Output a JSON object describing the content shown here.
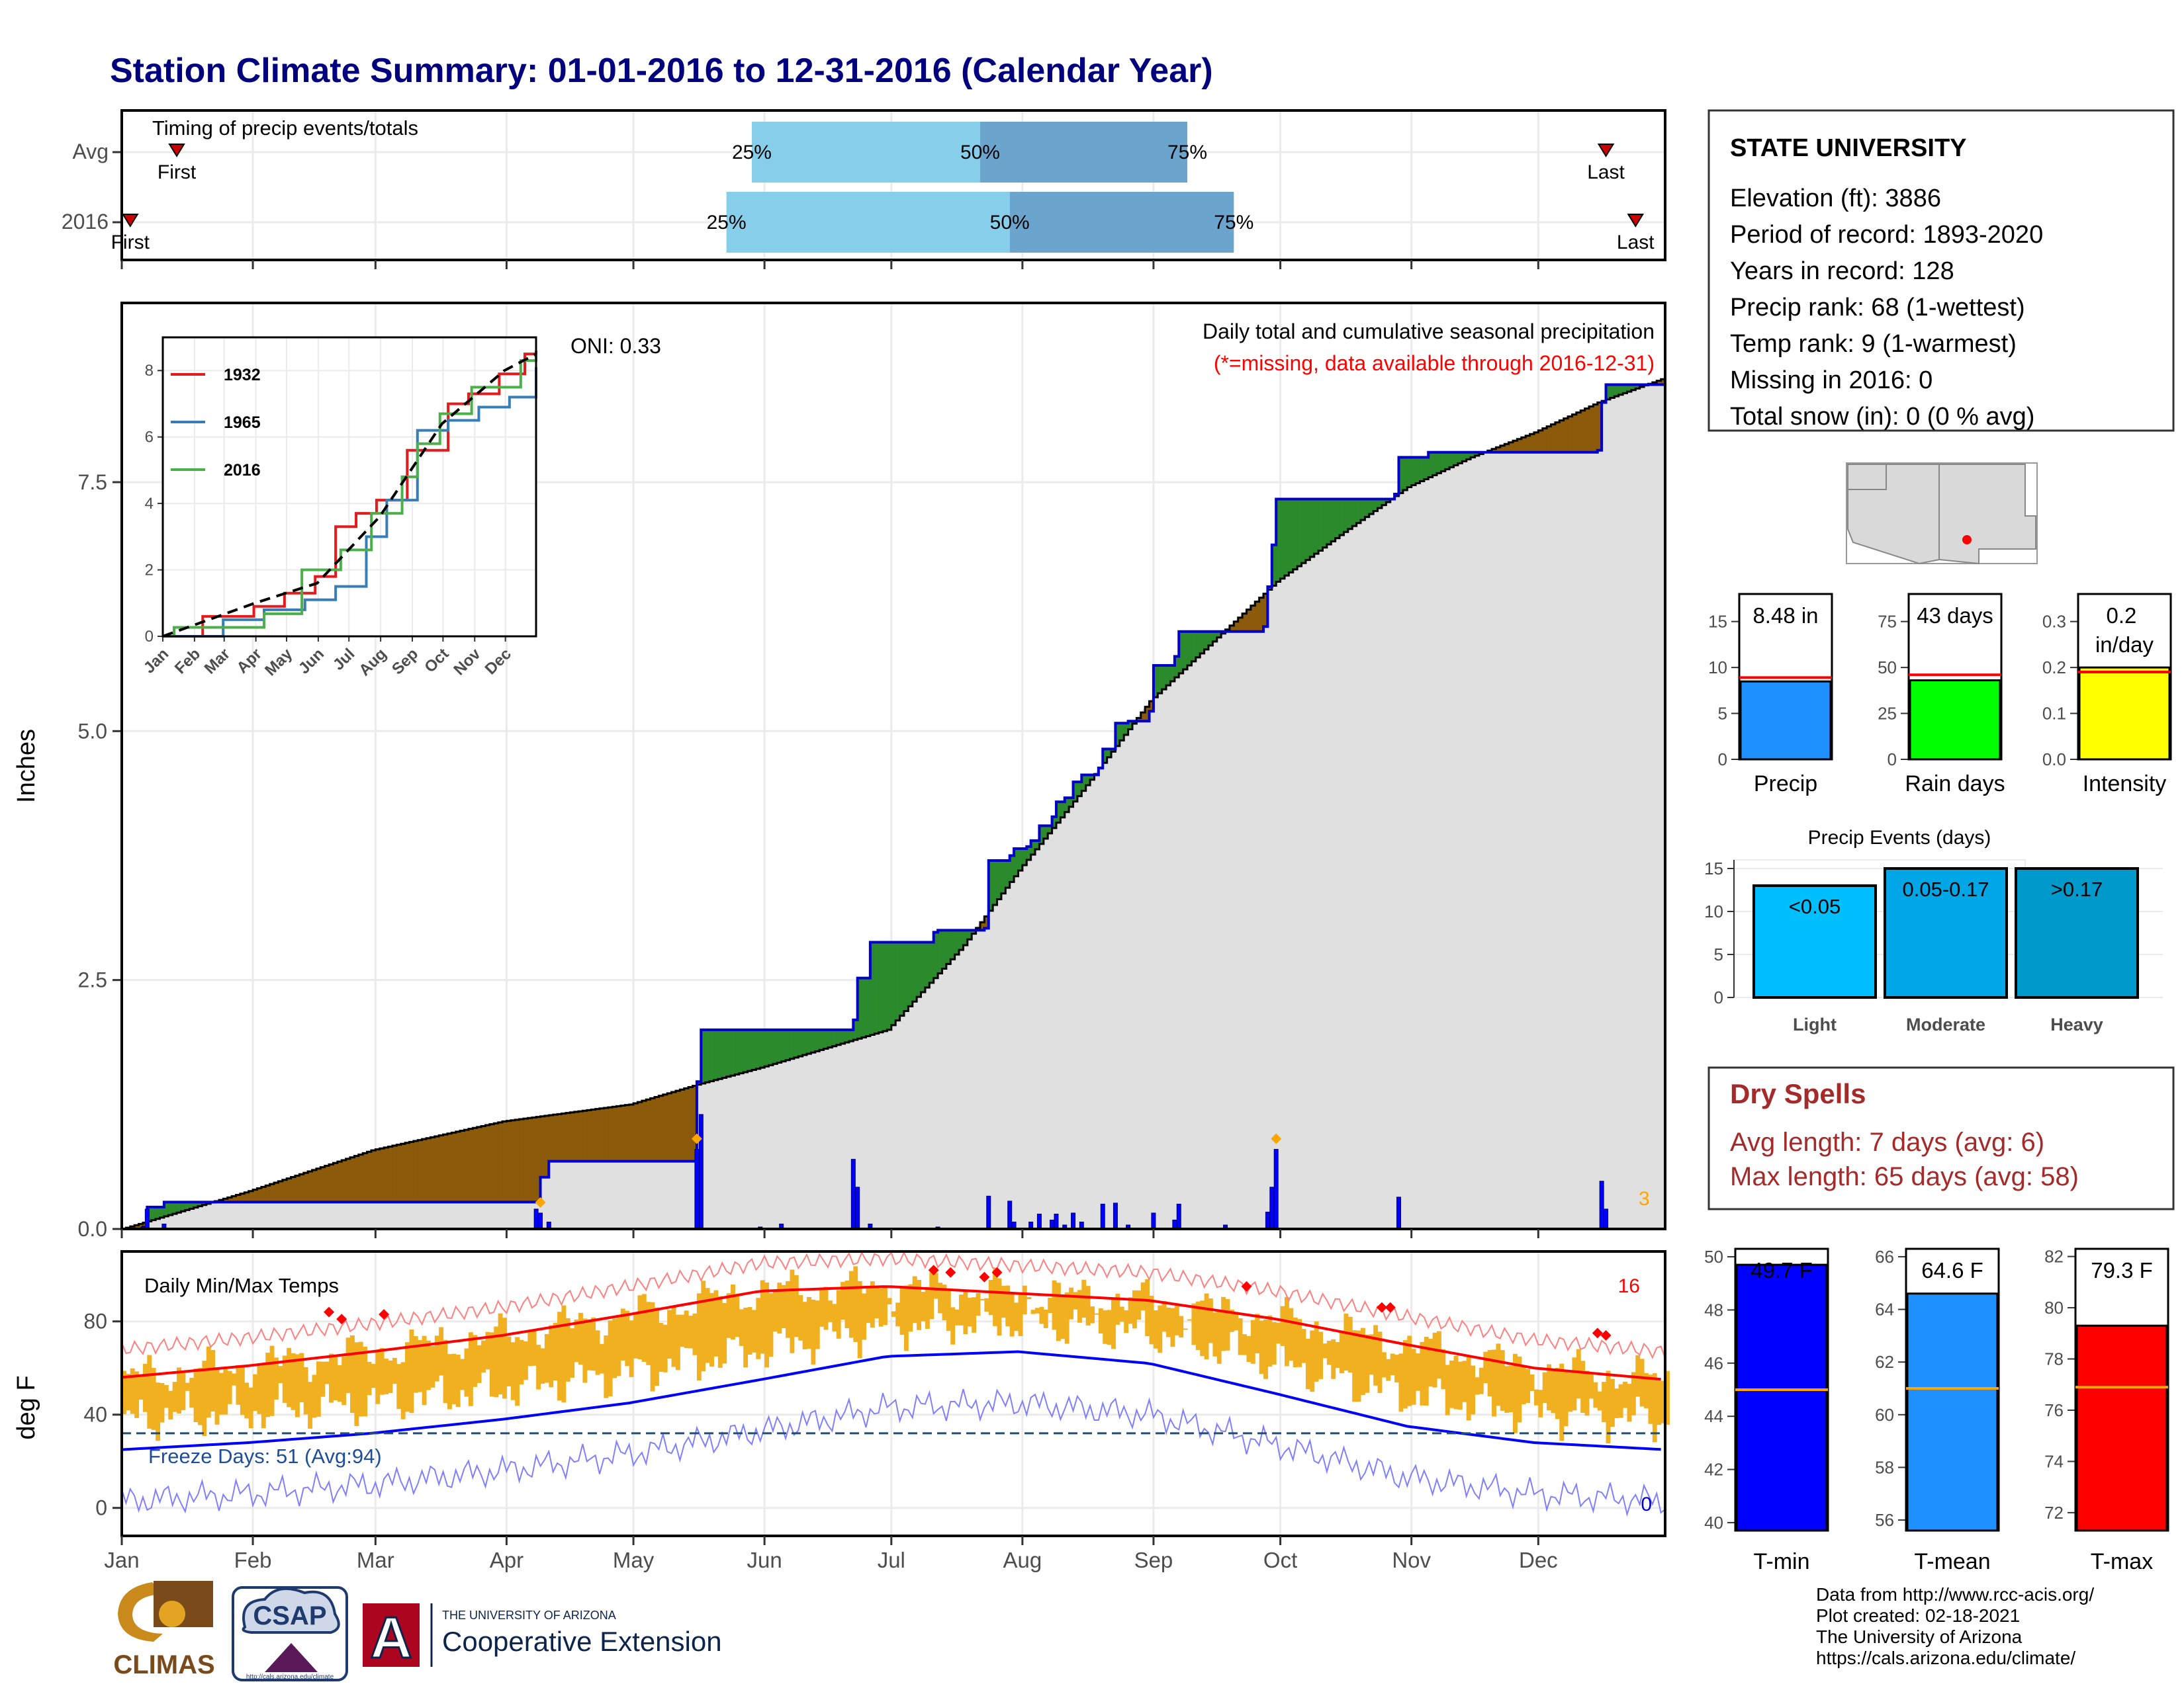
{
  "title": "Station Climate Summary: 01-01-2016 to 12-31-2016 (Calendar Year)",
  "colors": {
    "title": "#00007f",
    "accent_dry": "#a52a2a",
    "band_light": "#87ceeb",
    "band_dark": "#6ba4cc",
    "excess": "#2b8a2b",
    "deficit": "#8b5a0a",
    "cum_line": "#0000cc",
    "bars": "#0000ff",
    "temp_bar": "#f0b020",
    "tmax_line": "#ff0000",
    "tmin_line": "#0000ff"
  },
  "months": [
    "Jan",
    "Feb",
    "Mar",
    "Apr",
    "May",
    "Jun",
    "Jul",
    "Aug",
    "Sep",
    "Oct",
    "Nov",
    "Dec"
  ],
  "timing_panel": {
    "label": "Timing of precip events/totals",
    "rows": [
      {
        "name": "Avg",
        "first_label": "First",
        "first_doy": 14,
        "last_label": "Last",
        "last_doy": 352,
        "p25_label": "25%",
        "p50_label": "50%",
        "p75_label": "75%",
        "p25_doy": 150,
        "p50_doy": 204,
        "p75_doy": 253
      },
      {
        "name": "2016",
        "first_label": "First",
        "first_doy": 3,
        "last_label": "Last",
        "last_doy": 359,
        "p25_label": "25%",
        "p50_label": "50%",
        "p75_label": "75%",
        "p25_doy": 144,
        "p50_doy": 211,
        "p75_doy": 264
      }
    ]
  },
  "chart_data": [
    {
      "type": "area",
      "title": "Daily total and cumulative seasonal precipitation",
      "subtitle": "(*=missing, data available through 2016-12-31)",
      "oni_label": "ONI: 0.33",
      "ylabel": "Inches",
      "ylim": [
        0,
        9.3
      ],
      "yticks": [
        0.0,
        2.5,
        5.0,
        7.5
      ],
      "ytick_labels": [
        "0.0",
        "2.5",
        "5.0",
        "7.5"
      ],
      "xlim_doy": [
        1,
        366
      ],
      "cumulative_2016": {
        "doy": [
          1,
          6,
          7,
          11,
          12,
          43,
          99,
          100,
          102,
          136,
          137,
          138,
          174,
          175,
          178,
          193,
          194,
          205,
          206,
          211,
          212,
          215,
          216,
          218,
          221,
          222,
          224,
          226,
          228,
          232,
          233,
          236,
          239,
          244,
          245,
          250,
          251,
          271,
          272,
          273,
          274,
          302,
          303,
          310,
          350,
          351,
          352,
          359,
          366
        ],
        "inches": [
          0.0,
          0.02,
          0.22,
          0.27,
          0.27,
          0.27,
          0.27,
          0.52,
          0.68,
          0.68,
          1.48,
          2.0,
          2.1,
          2.52,
          2.88,
          2.98,
          3.0,
          3.02,
          3.7,
          3.75,
          3.82,
          3.84,
          3.9,
          4.05,
          4.14,
          4.29,
          4.33,
          4.49,
          4.56,
          4.63,
          4.82,
          5.08,
          5.1,
          5.2,
          5.66,
          5.75,
          6.0,
          6.05,
          6.45,
          6.87,
          7.33,
          7.38,
          7.75,
          7.8,
          7.82,
          8.3,
          8.48,
          8.48,
          8.48
        ]
      },
      "average_cumulative": {
        "doy": [
          1,
          31,
          60,
          91,
          121,
          137,
          152,
          182,
          200,
          213,
          228,
          244,
          259,
          274,
          290,
          305,
          320,
          335,
          350,
          366
        ],
        "inches": [
          0.0,
          0.38,
          0.79,
          1.08,
          1.25,
          1.45,
          1.62,
          2.0,
          2.85,
          3.6,
          4.4,
          5.3,
          5.9,
          6.5,
          7.0,
          7.45,
          7.75,
          8.0,
          8.3,
          8.55
        ]
      },
      "daily_bars": {
        "doy": [
          6,
          7,
          11,
          99,
          100,
          102,
          137,
          138,
          152,
          157,
          174,
          175,
          178,
          194,
          206,
          211,
          212,
          216,
          218,
          221,
          222,
          224,
          226,
          228,
          233,
          236,
          239,
          245,
          250,
          251,
          262,
          272,
          273,
          274,
          303,
          351,
          352
        ],
        "inches": [
          0.02,
          0.2,
          0.05,
          0.2,
          0.16,
          0.07,
          0.8,
          1.15,
          0.02,
          0.05,
          0.7,
          0.42,
          0.05,
          0.02,
          0.33,
          0.28,
          0.07,
          0.07,
          0.15,
          0.09,
          0.15,
          0.04,
          0.16,
          0.07,
          0.25,
          0.26,
          0.04,
          0.16,
          0.09,
          0.25,
          0.04,
          0.17,
          0.42,
          0.8,
          0.32,
          0.48,
          0.2
        ]
      },
      "missing_markers_doy": [
        100,
        137,
        274
      ],
      "annotation_right": "3"
    },
    {
      "type": "line",
      "inset": true,
      "series": [
        {
          "name": "1932",
          "color": "#e41a1c",
          "doy": [
            1,
            40,
            90,
            120,
            150,
            170,
            190,
            210,
            240,
            280,
            300,
            330,
            355,
            366
          ],
          "inches": [
            0.0,
            0.6,
            0.9,
            1.3,
            1.8,
            3.3,
            3.7,
            4.1,
            5.6,
            7.0,
            7.3,
            7.9,
            8.5,
            8.6
          ]
        },
        {
          "name": "1965",
          "color": "#377eb8",
          "doy": [
            1,
            60,
            100,
            140,
            170,
            200,
            220,
            250,
            280,
            310,
            340,
            366
          ],
          "inches": [
            0.0,
            0.5,
            0.8,
            1.1,
            1.5,
            3.0,
            4.1,
            6.2,
            6.5,
            6.9,
            7.2,
            8.1
          ]
        },
        {
          "name": "2016",
          "color": "#4daf4a",
          "doy": [
            1,
            12,
            100,
            137,
            175,
            205,
            235,
            250,
            272,
            303,
            351,
            366
          ],
          "inches": [
            0.0,
            0.27,
            0.68,
            2.0,
            2.6,
            3.7,
            4.8,
            5.8,
            6.7,
            7.5,
            8.3,
            8.48
          ]
        }
      ],
      "average_line": {
        "doy": [
          1,
          91,
          152,
          213,
          274,
          335,
          366
        ],
        "inches": [
          0.0,
          1.0,
          1.6,
          3.6,
          6.4,
          8.0,
          8.5
        ]
      },
      "ylim": [
        0,
        9
      ],
      "yticks": [
        0,
        2,
        4,
        6,
        8
      ],
      "ytick_labels": [
        "0",
        "2",
        "4",
        "6",
        "8"
      ],
      "xtick_labels": [
        "Jan",
        "Feb",
        "Mar",
        "Apr",
        "May",
        "Jun",
        "Jul",
        "Aug",
        "Sep",
        "Oct",
        "Nov",
        "Dec"
      ]
    },
    {
      "type": "bar",
      "title": "Daily Min/Max Temps",
      "ylabel": "deg F",
      "ylim": [
        -12,
        110
      ],
      "yticks": [
        0,
        40,
        80
      ],
      "ytick_labels": [
        "0",
        "40",
        "80"
      ],
      "freeze_label": "Freeze Days: 51 (Avg:94)",
      "freeze_line_f": 32,
      "count_high": "16",
      "count_low": "0",
      "normal_tmax": {
        "doy": [
          1,
          31,
          60,
          91,
          121,
          152,
          182,
          213,
          244,
          274,
          305,
          335,
          366
        ],
        "f": [
          56,
          61,
          67,
          74,
          83,
          93,
          95,
          92,
          89,
          81,
          70,
          60,
          55
        ]
      },
      "normal_tmin": {
        "doy": [
          1,
          31,
          60,
          91,
          121,
          152,
          182,
          213,
          244,
          274,
          305,
          335,
          366
        ],
        "f": [
          25,
          28,
          32,
          38,
          45,
          55,
          65,
          67,
          62,
          49,
          35,
          28,
          25
        ]
      },
      "record_high_markers_doy": [
        50,
        53,
        63,
        193,
        197,
        205,
        208,
        267,
        299,
        301,
        350,
        352
      ],
      "record_high_markers_f": [
        84,
        81,
        83,
        102,
        101,
        99,
        101,
        95,
        86,
        86,
        75,
        74
      ]
    },
    {
      "type": "bar",
      "title": "Precip summary",
      "panels": [
        {
          "category": "Precip",
          "value_label": "8.48 in",
          "value": 8.48,
          "avg": 8.9,
          "ylim": [
            0,
            18
          ],
          "yticks": [
            0,
            5,
            10,
            15
          ],
          "ytick_labels": [
            "0",
            "5",
            "10",
            "15"
          ],
          "color": "#1e90ff"
        },
        {
          "category": "Rain days",
          "value_label": "43 days",
          "value": 43,
          "avg": 46,
          "ylim": [
            0,
            90
          ],
          "yticks": [
            0,
            25,
            50,
            75
          ],
          "ytick_labels": [
            "0",
            "25",
            "50",
            "75"
          ],
          "color": "#00ff00"
        },
        {
          "category": "Intensity",
          "value_label": "0.2 in/day",
          "value": 0.2,
          "avg": 0.19,
          "ylim": [
            0,
            0.36
          ],
          "yticks": [
            0.0,
            0.1,
            0.2,
            0.3
          ],
          "ytick_labels": [
            "0.0",
            "0.1",
            "0.2",
            "0.3"
          ],
          "color": "#ffff00"
        }
      ]
    },
    {
      "type": "bar",
      "title": "Precip Events (days)",
      "categories": [
        "Light",
        "Moderate",
        "Heavy"
      ],
      "bar_labels": [
        "<0.05",
        "0.05-0.17",
        ">0.17"
      ],
      "values": [
        13,
        15,
        15
      ],
      "ylim": [
        0,
        16
      ],
      "yticks": [
        0,
        5,
        10,
        15
      ],
      "ytick_labels": [
        "0",
        "5",
        "10",
        "15"
      ],
      "colors": [
        "#00bfff",
        "#00a6e6",
        "#0099cc"
      ]
    },
    {
      "type": "bar",
      "title": "Temperature summary",
      "panels": [
        {
          "category": "T-min",
          "value_label": "49.7 F",
          "value": 49.7,
          "avg": 45.0,
          "ylim": [
            39.7,
            50.3
          ],
          "yticks": [
            40,
            42,
            44,
            46,
            48,
            50
          ],
          "ytick_labels": [
            "40",
            "42",
            "44",
            "46",
            "48",
            "50"
          ],
          "color": "#0000ff"
        },
        {
          "category": "T-mean",
          "value_label": "64.6 F",
          "value": 64.6,
          "avg": 61.0,
          "ylim": [
            55.6,
            66.3
          ],
          "yticks": [
            56,
            58,
            60,
            62,
            64,
            66
          ],
          "ytick_labels": [
            "56",
            "58",
            "60",
            "62",
            "64",
            "66"
          ],
          "color": "#1e90ff"
        },
        {
          "category": "T-max",
          "value_label": "79.3 F",
          "value": 79.3,
          "avg": 76.9,
          "ylim": [
            71.3,
            82.3
          ],
          "yticks": [
            72,
            74,
            76,
            78,
            80,
            82
          ],
          "ytick_labels": [
            "72",
            "74",
            "76",
            "78",
            "80",
            "82"
          ],
          "color": "#ff0000"
        }
      ]
    }
  ],
  "station_box": {
    "name": "STATE UNIVERSITY",
    "lines": [
      "Elevation (ft): 3886",
      "Period of record: 1893-2020",
      "Years in record: 128",
      "Precip rank: 68 (1-wettest)",
      "Temp rank: 9 (1-warmest)",
      "Missing in 2016: 0",
      "Total snow (in): 0 (0 % avg)"
    ]
  },
  "dry_spells": {
    "title": "Dry Spells",
    "avg_line": "Avg length: 7 days (avg: 6)",
    "max_line": "Max length: 65 days (avg: 58)"
  },
  "footer": {
    "lines": [
      "Data from http://www.rcc-acis.org/",
      "Plot created: 02-18-2021",
      "The University of Arizona",
      "https://cals.arizona.edu/climate/"
    ],
    "logo_climas": "CLIMAS",
    "logo_csap": "CSAP",
    "logo_csap_url": "http://cals.arizona.edu/climate",
    "logo_ua_small": "THE UNIVERSITY OF ARIZONA",
    "logo_ua_big": "Cooperative Extension",
    "logo_a_mark": "A"
  }
}
